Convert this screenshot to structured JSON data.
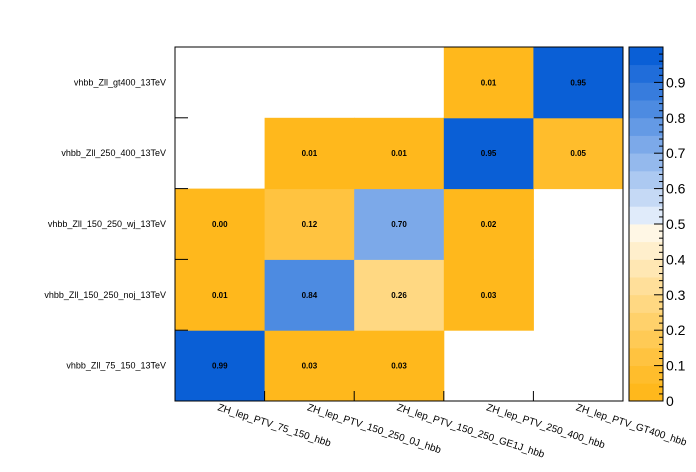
{
  "chart_data": {
    "type": "heatmap",
    "title": "",
    "xlabel": "",
    "ylabel": "",
    "x_categories": [
      "ZH_lep_PTV_75_150_hbb",
      "ZH_lep_PTV_150_250_0J_hbb",
      "ZH_lep_PTV_150_250_GE1J_hbb",
      "ZH_lep_PTV_250_400_hbb",
      "ZH_lep_PTV_GT400_hbb"
    ],
    "y_categories": [
      "vhbb_Zll_75_150_13TeV",
      "vhbb_Zll_150_250_noj_13TeV",
      "vhbb_Zll_150_250_wj_13TeV",
      "vhbb_Zll_250_400_13TeV",
      "vhbb_Zll_gt400_13TeV"
    ],
    "cells": [
      {
        "x": 0,
        "y": 0,
        "value": 0.99,
        "label": "0.99"
      },
      {
        "x": 1,
        "y": 0,
        "value": 0.03,
        "label": "0.03"
      },
      {
        "x": 2,
        "y": 0,
        "value": 0.03,
        "label": "0.03"
      },
      {
        "x": 0,
        "y": 1,
        "value": 0.01,
        "label": "0.01"
      },
      {
        "x": 1,
        "y": 1,
        "value": 0.84,
        "label": "0.84"
      },
      {
        "x": 2,
        "y": 1,
        "value": 0.26,
        "label": "0.26"
      },
      {
        "x": 3,
        "y": 1,
        "value": 0.03,
        "label": "0.03"
      },
      {
        "x": 0,
        "y": 2,
        "value": 0.0,
        "label": "0.00"
      },
      {
        "x": 1,
        "y": 2,
        "value": 0.12,
        "label": "0.12"
      },
      {
        "x": 2,
        "y": 2,
        "value": 0.7,
        "label": "0.70"
      },
      {
        "x": 3,
        "y": 2,
        "value": 0.02,
        "label": "0.02"
      },
      {
        "x": 1,
        "y": 3,
        "value": 0.01,
        "label": "0.01"
      },
      {
        "x": 2,
        "y": 3,
        "value": 0.01,
        "label": "0.01"
      },
      {
        "x": 3,
        "y": 3,
        "value": 0.95,
        "label": "0.95"
      },
      {
        "x": 4,
        "y": 3,
        "value": 0.05,
        "label": "0.05"
      },
      {
        "x": 3,
        "y": 4,
        "value": 0.01,
        "label": "0.01"
      },
      {
        "x": 4,
        "y": 4,
        "value": 0.95,
        "label": "0.95"
      }
    ],
    "zrange": [
      0,
      1
    ],
    "colorbar_ticks": [
      "0",
      "0.1",
      "0.2",
      "0.3",
      "0.4",
      "0.5",
      "0.6",
      "0.7",
      "0.8",
      "0.9"
    ],
    "palette": {
      "orange": "#ffb81c",
      "white": "#ffffff",
      "blue": "#0a5fd6"
    },
    "grid": false,
    "legend": "colorbar-right"
  }
}
